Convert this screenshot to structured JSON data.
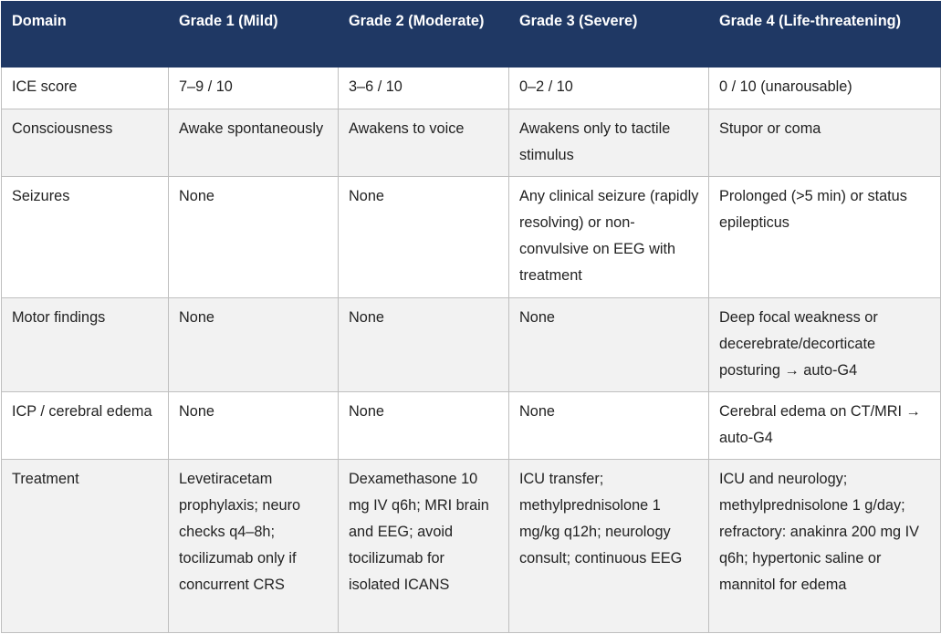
{
  "table": {
    "columns": [
      "Domain",
      "Grade 1 (Mild)",
      "Grade 2 (Moderate)",
      "Grade 3 (Severe)",
      "Grade 4 (Life-threatening)"
    ],
    "rows": [
      [
        "ICE score",
        "7–9 / 10",
        "3–6 / 10",
        "0–2 / 10",
        "0 / 10 (unarousable)"
      ],
      [
        "Consciousness",
        "Awake spontaneously",
        "Awakens to voice",
        "Awakens only to tactile stimulus",
        "Stupor or coma"
      ],
      [
        "Seizures",
        "None",
        "None",
        "Any clinical seizure (rapidly resolving) or non-convulsive on EEG with treatment",
        "Prolonged (>5 min) or status epilepticus"
      ],
      [
        "Motor findings",
        "None",
        "None",
        "None",
        "Deep focal weakness or decerebrate/decorticate posturing → auto-G4"
      ],
      [
        "ICP / cerebral edema",
        "None",
        "None",
        "None",
        "Cerebral edema on CT/MRI → auto-G4"
      ],
      [
        "Treatment",
        "Levetiracetam prophylaxis; neuro checks q4–8h; tocilizumab only if concurrent CRS",
        "Dexamethasone 10 mg IV q6h; MRI brain and EEG; avoid tocilizumab for isolated ICANS",
        "ICU transfer; methylprednisolone 1 mg/kg q12h; neurology consult; continuous EEG",
        "ICU and neurology; methylprednisolone 1 g/day; refractory: anakinra 200 mg IV q6h; hypertonic saline or mannitol for edema"
      ]
    ]
  }
}
